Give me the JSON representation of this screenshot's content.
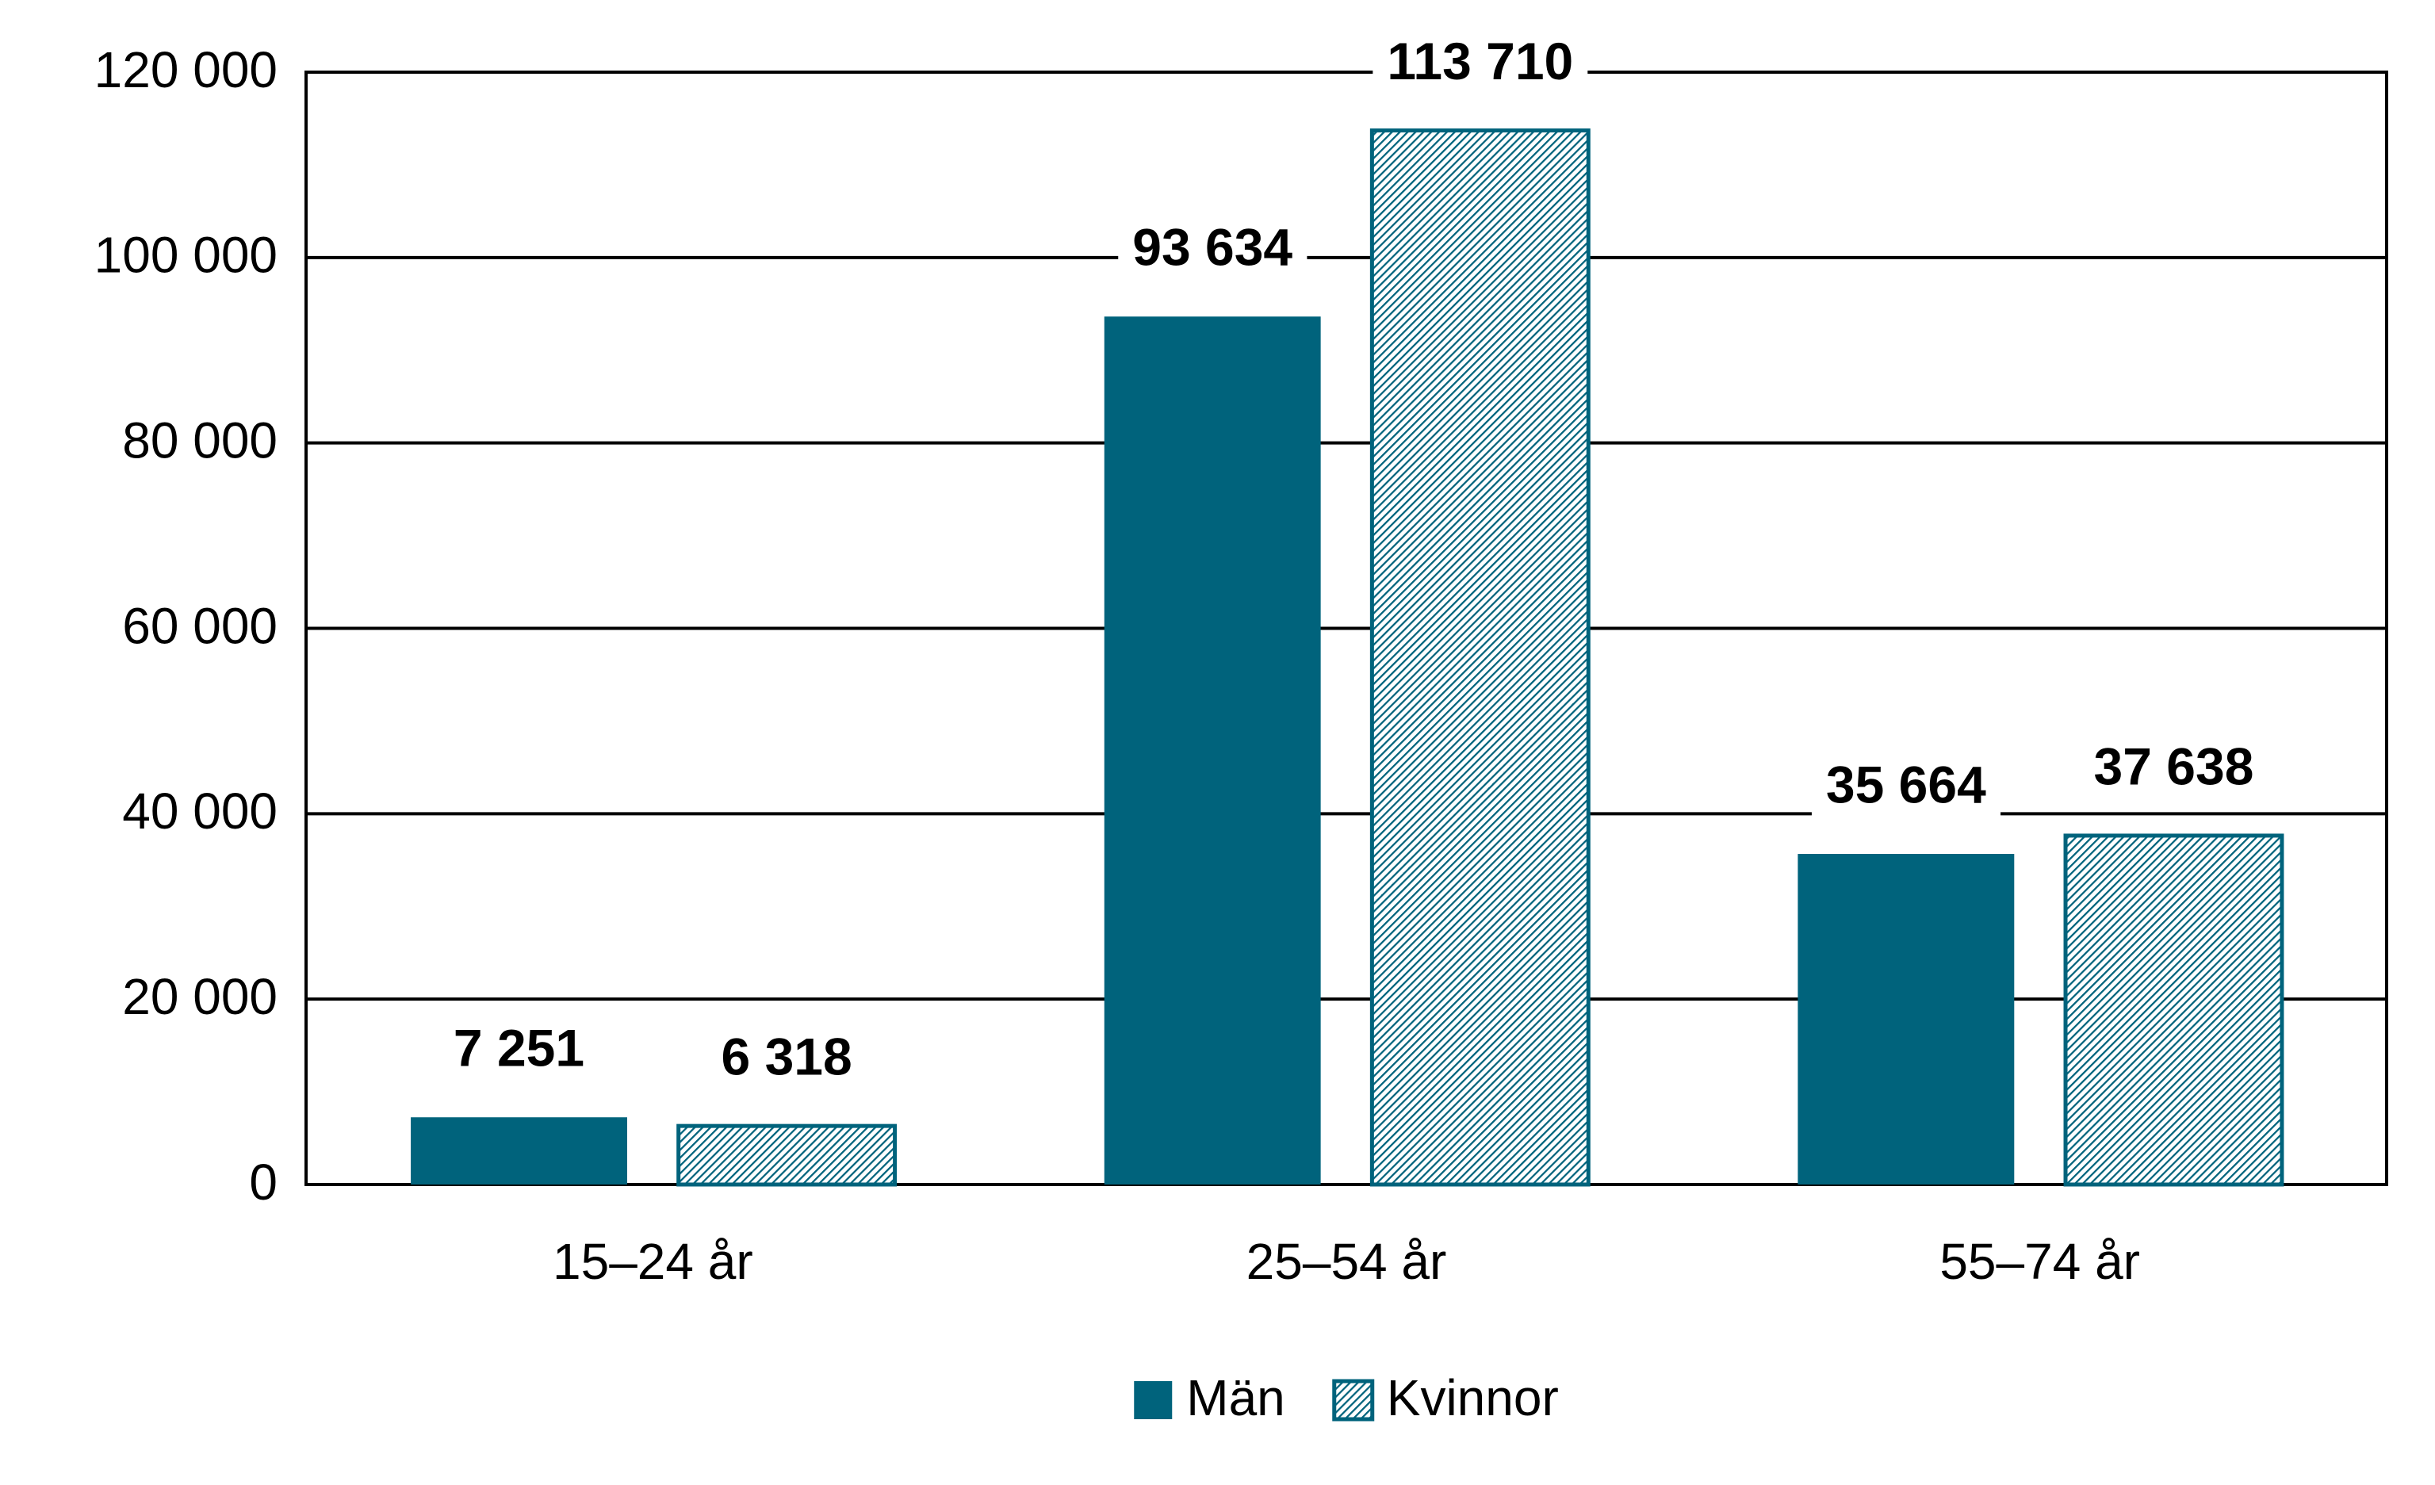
{
  "chart_data": {
    "type": "bar",
    "categories": [
      "15–24 år",
      "25–54 år",
      "55–74 år"
    ],
    "series": [
      {
        "name": "Män",
        "color": "#00637c",
        "values": [
          7251,
          93634,
          35664
        ],
        "value_labels": [
          "7 251",
          "93 634",
          "35 664"
        ]
      },
      {
        "name": "Kvinnor",
        "color": "#00637c",
        "pattern": "hatch",
        "values": [
          6318,
          113710,
          37638
        ],
        "value_labels": [
          "6 318",
          "113 710",
          "37 638"
        ]
      }
    ],
    "ylim": [
      0,
      120000
    ],
    "yticks": [
      0,
      {
        "value": 20000,
        "label": "20 000"
      },
      {
        "value": 40000,
        "label": "40 000"
      },
      {
        "value": 60000,
        "label": "60 000"
      },
      {
        "value": 80000,
        "label": "80 000"
      },
      {
        "value": 100000,
        "label": "100 000"
      },
      {
        "value": 120000,
        "label": "120 000"
      }
    ],
    "grid": true,
    "legend": "bottom"
  }
}
